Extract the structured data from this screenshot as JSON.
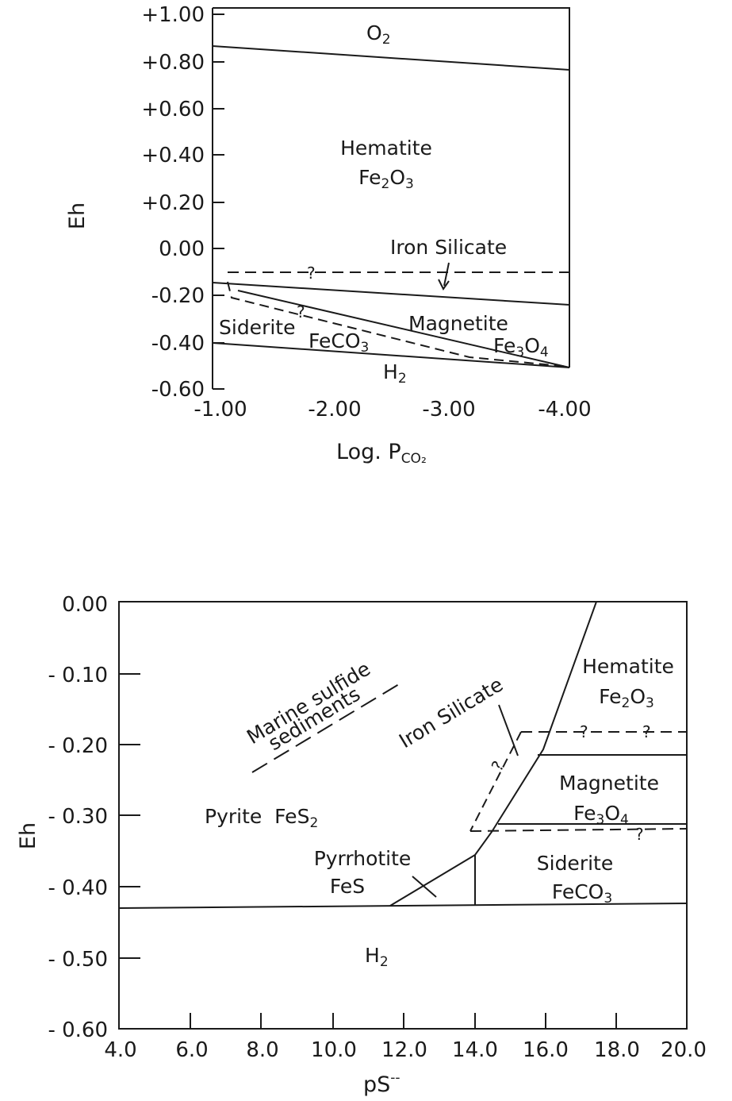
{
  "diagrams": [
    {
      "id": "top",
      "axes": {
        "y_label": "Eh",
        "x_label_main": "Log. P",
        "x_label_sub": "CO₂",
        "y_ticks": [
          "+1.00",
          "+0.80",
          "+0.60",
          "+0.40",
          "+0.20",
          "0.00",
          "-0.20",
          "-0.40",
          "-0.60"
        ],
        "x_ticks": [
          "-1.00",
          "-2.00",
          "-3.00",
          "-4.00"
        ]
      },
      "labels": {
        "o2": {
          "main": "O",
          "sub": "2"
        },
        "hematite_name": "Hematite",
        "hematite_formula": {
          "a": "Fe",
          "b": "2",
          "c": "O",
          "d": "3"
        },
        "iron_silicate": "Iron Silicate",
        "siderite_name": "Siderite",
        "siderite_formula": {
          "a": "FeCO",
          "b": "3"
        },
        "magnetite_name": "Magnetite",
        "magnetite_formula": {
          "a": "Fe",
          "b": "3",
          "c": "O",
          "d": "4"
        },
        "h2": {
          "main": "H",
          "sub": "2"
        },
        "question_mark": "?"
      }
    },
    {
      "id": "bottom",
      "axes": {
        "y_label": "Eh",
        "x_label_main": "pS",
        "x_label_sup": "--",
        "y_ticks": [
          "0.00",
          "- 0.10",
          "- 0.20",
          "- 0.30",
          "- 0.40",
          "- 0.50",
          "- 0.60"
        ],
        "x_ticks": [
          "4.0",
          "6.0",
          "8.0",
          "10.0",
          "12.0",
          "14.0",
          "16.0",
          "18.0",
          "20.0"
        ]
      },
      "labels": {
        "marine_line1": "Marine sulfide",
        "marine_line2": "sediments",
        "iron_silicate": "Iron Silicate",
        "hematite_name": "Hematite",
        "hematite_formula": {
          "a": "Fe",
          "b": "2",
          "c": "O",
          "d": "3"
        },
        "magnetite_name": "Magnetite",
        "magnetite_formula": {
          "a": "Fe",
          "b": "3",
          "c": "O",
          "d": "4"
        },
        "pyrite": {
          "a": "Pyrite  FeS",
          "b": "2"
        },
        "pyrrhotite_name": "Pyrrhotite",
        "pyrrhotite_formula": "FeS",
        "siderite_name": "Siderite",
        "siderite_formula": {
          "a": "FeCO",
          "b": "3"
        },
        "h2": {
          "main": "H",
          "sub": "2"
        },
        "question_mark": "?"
      }
    }
  ]
}
